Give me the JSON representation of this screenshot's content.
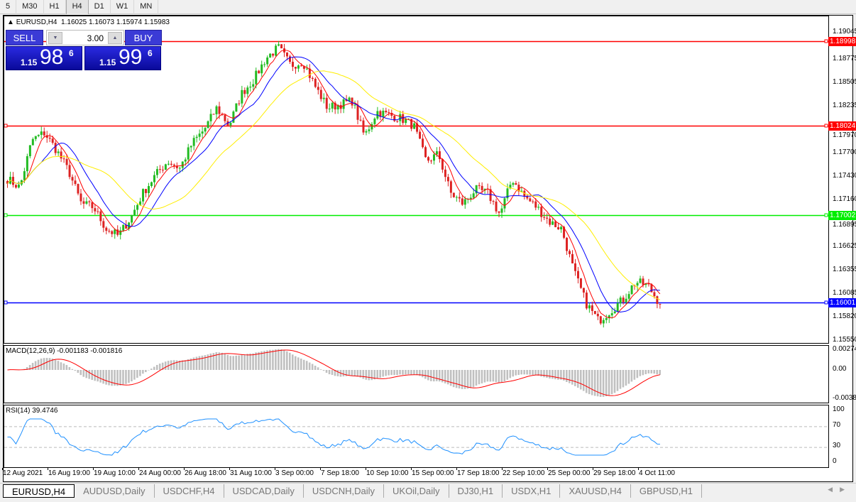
{
  "toolbar": {
    "timeframes": [
      "5",
      "M30",
      "H1",
      "H4",
      "D1",
      "W1",
      "MN"
    ],
    "active": "H4"
  },
  "header": {
    "symbol": "EURUSD,H4",
    "ohlc": "1.16025 1.16073 1.15974 1.15983"
  },
  "trade": {
    "sell_label": "SELL",
    "buy_label": "BUY",
    "lot": "3.00",
    "sell": {
      "small": "1.15",
      "big": "98",
      "sup": "6"
    },
    "buy": {
      "small": "1.15",
      "big": "99",
      "sup": "6"
    }
  },
  "price_axis": [
    "1.19045",
    "1.18775",
    "1.18505",
    "1.18235",
    "1.17970",
    "1.17700",
    "1.17430",
    "1.17160",
    "1.16895",
    "1.16625",
    "1.16355",
    "1.16085",
    "1.15820",
    "1.15550"
  ],
  "hlines": [
    {
      "price": "1.18998",
      "color": "#ff0000"
    },
    {
      "price": "1.18024",
      "color": "#ff0000"
    },
    {
      "price": "1.17002",
      "color": "#00ee00"
    },
    {
      "price": "1.16001",
      "color": "#0000ff"
    }
  ],
  "macd": {
    "label": "MACD(12,26,9) -0.001183 -0.001816",
    "ticks": [
      "0.002744",
      "0.00",
      "-0.00382"
    ]
  },
  "rsi": {
    "label": "RSI(14) 39.4746",
    "ticks": [
      "100",
      "70",
      "30",
      "0"
    ]
  },
  "x_axis": [
    "12 Aug 2021",
    "16 Aug 19:00",
    "19 Aug 10:00",
    "24 Aug 00:00",
    "26 Aug 18:00",
    "31 Aug 10:00",
    "3 Sep 00:00",
    "7 Sep 18:00",
    "10 Sep 10:00",
    "15 Sep 00:00",
    "17 Sep 18:00",
    "22 Sep 10:00",
    "25 Sep 00:00",
    "29 Sep 18:00",
    "4 Oct 11:00"
  ],
  "tabs": [
    "EURUSD,H4",
    "AUDUSD,Daily",
    "USDCHF,H4",
    "USDCAD,Daily",
    "USDCNH,Daily",
    "UKOil,Daily",
    "DJ30,H1",
    "USDX,H1",
    "XAUUSD,H4",
    "GBPUSD,H1"
  ],
  "colors": {
    "bull": "#22bb22",
    "bear": "#dd2222",
    "ma_fast": "#ff0000",
    "ma_mid": "#0000ff",
    "ma_slow": "#ffee00",
    "macd_hist": "#c0c0c0",
    "macd_signal": "#ff0000",
    "rsi": "#1e90ff"
  },
  "chart_data": {
    "type": "candlestick",
    "symbol": "EURUSD",
    "timeframe": "H4",
    "ylim": [
      1.1555,
      1.1905
    ],
    "close_path": [
      1.17416,
      1.17318,
      1.17863,
      1.17945,
      1.17741,
      1.17497,
      1.17131,
      1.1709,
      1.16846,
      1.16764,
      1.16968,
      1.17253,
      1.17456,
      1.17619,
      1.17538,
      1.17823,
      1.17985,
      1.1823,
      1.18026,
      1.18392,
      1.18555,
      1.18799,
      1.18922,
      1.18718,
      1.18759,
      1.18474,
      1.1823,
      1.1827,
      1.18311,
      1.17904,
      1.18189,
      1.18148,
      1.18108,
      1.18026,
      1.17619,
      1.17701,
      1.17253,
      1.17131,
      1.17294,
      1.17253,
      1.17009,
      1.17416,
      1.17212,
      1.1709,
      1.16927,
      1.16846,
      1.16357,
      1.15991,
      1.15788,
      1.1591,
      1.16032,
      1.16235,
      1.16195,
      1.15983
    ],
    "indicators": [
      "MA fast",
      "MA mid",
      "MA slow",
      "MACD(12,26,9)",
      "RSI(14)"
    ]
  }
}
